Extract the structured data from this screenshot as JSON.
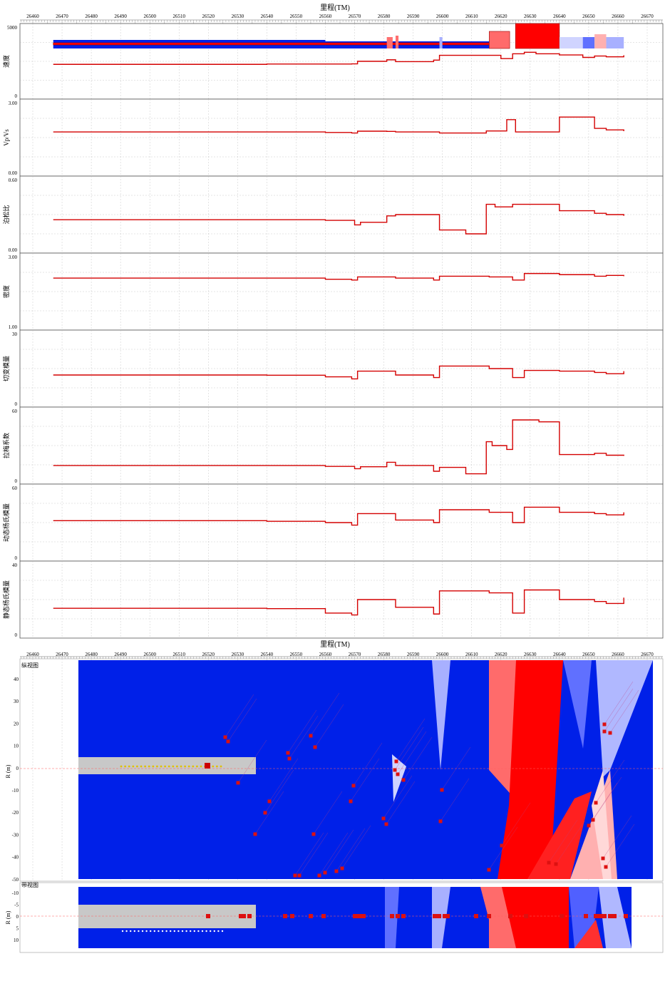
{
  "x_axis_title": "里程(TM)",
  "x_ticks": [
    26460,
    26470,
    26480,
    26490,
    26500,
    26510,
    26520,
    26530,
    26540,
    26550,
    26560,
    26570,
    26580,
    26590,
    26600,
    26610,
    26620,
    26630,
    26640,
    26650,
    26660,
    26670
  ],
  "colors": {
    "line": "#d40000",
    "blue": "#0020e8",
    "red": "#ff0000",
    "gray_bar": "#c8c8c8",
    "grid": "#bbbbbb"
  },
  "chart_data": [
    {
      "type": "area",
      "name": "velocity",
      "ylabel": "速度",
      "y_top_label": "5000",
      "y_bottom_label": "0",
      "ylim": [
        0,
        5000
      ],
      "series": [
        {
          "x": [
            26467,
            26540,
            26569,
            26571,
            26581,
            26584,
            26597,
            26599,
            26616,
            26620,
            26624,
            26628,
            26632,
            26640,
            26648,
            26652,
            26656,
            26662
          ],
          "values": [
            2300,
            2320,
            2330,
            2500,
            2600,
            2480,
            2580,
            2900,
            2900,
            2680,
            3000,
            3100,
            3000,
            2920,
            2760,
            2850,
            2800,
            2900
          ]
        }
      ]
    },
    {
      "type": "line",
      "name": "vp_vs",
      "ylabel": "Vp/Vs",
      "y_top_label": "3.00",
      "y_bottom_label": "0.00",
      "ylim": [
        0,
        3
      ],
      "series": [
        {
          "x": [
            26467,
            26540,
            26560,
            26569,
            26571,
            26581,
            26584,
            26599,
            26615,
            26622,
            26625,
            26640,
            26652,
            26656,
            26662
          ],
          "values": [
            1.72,
            1.72,
            1.7,
            1.68,
            1.75,
            1.74,
            1.72,
            1.68,
            1.76,
            2.2,
            1.72,
            2.3,
            1.86,
            1.8,
            1.75
          ]
        }
      ]
    },
    {
      "type": "line",
      "name": "poisson_ratio",
      "ylabel": "泊松比",
      "y_top_label": "0.60",
      "y_bottom_label": "0.00",
      "ylim": [
        0,
        0.6
      ],
      "series": [
        {
          "x": [
            26467,
            26540,
            26560,
            26570,
            26572,
            26581,
            26584,
            26599,
            26608,
            26615,
            26618,
            26624,
            26640,
            26652,
            26656,
            26662
          ],
          "values": [
            0.26,
            0.26,
            0.255,
            0.22,
            0.24,
            0.29,
            0.3,
            0.18,
            0.15,
            0.38,
            0.36,
            0.38,
            0.33,
            0.31,
            0.3,
            0.29
          ]
        }
      ]
    },
    {
      "type": "line",
      "name": "density",
      "ylabel": "密度",
      "y_top_label": "3.00",
      "y_bottom_label": "1.00",
      "ylim": [
        1,
        3
      ],
      "series": [
        {
          "x": [
            26467,
            26540,
            26560,
            26569,
            26571,
            26584,
            26597,
            26599,
            26616,
            26624,
            26628,
            26640,
            26652,
            26656,
            26662
          ],
          "values": [
            2.35,
            2.35,
            2.32,
            2.3,
            2.38,
            2.35,
            2.3,
            2.4,
            2.38,
            2.3,
            2.47,
            2.44,
            2.4,
            2.42,
            2.4
          ]
        }
      ]
    },
    {
      "type": "line",
      "name": "shear_modulus",
      "ylabel": "切变模量",
      "y_top_label": "30",
      "y_bottom_label": "0",
      "ylim": [
        0,
        30
      ],
      "series": [
        {
          "x": [
            26467,
            26540,
            26560,
            26569,
            26571,
            26584,
            26597,
            26599,
            26616,
            26624,
            26628,
            26640,
            26652,
            26656,
            26662
          ],
          "values": [
            12.5,
            12.4,
            11.8,
            11.0,
            14.0,
            12.5,
            11.5,
            16.0,
            15.0,
            11.5,
            14.3,
            14.0,
            13.5,
            13.0,
            14.0
          ]
        }
      ]
    },
    {
      "type": "line",
      "name": "lame_coefficient",
      "ylabel": "拉梅系数",
      "y_top_label": "60",
      "y_bottom_label": "0",
      "ylim": [
        0,
        60
      ],
      "series": [
        {
          "x": [
            26467,
            26540,
            26560,
            26570,
            26572,
            26581,
            26584,
            26597,
            26599,
            26608,
            26615,
            26617,
            26622,
            26624,
            26633,
            26640,
            26652,
            26656,
            26662
          ],
          "values": [
            14.5,
            14.5,
            13.8,
            12.0,
            13.5,
            17.0,
            14.5,
            10.0,
            13.0,
            8.0,
            33.0,
            30.0,
            27.0,
            50.0,
            48.5,
            23.0,
            24.0,
            22.5,
            22.0
          ]
        }
      ]
    },
    {
      "type": "line",
      "name": "dynamic_youngs_modulus",
      "ylabel": "动态杨氏模量",
      "y_top_label": "60",
      "y_bottom_label": "0",
      "ylim": [
        0,
        60
      ],
      "series": [
        {
          "x": [
            26467,
            26540,
            26560,
            26569,
            26571,
            26584,
            26597,
            26599,
            26616,
            26624,
            26628,
            26640,
            26652,
            26656,
            26662
          ],
          "values": [
            31.5,
            31.0,
            30.0,
            28.0,
            37.0,
            32.0,
            30.0,
            40.0,
            38.0,
            30.0,
            42.0,
            38.0,
            37.0,
            36.0,
            38.0
          ]
        }
      ]
    },
    {
      "type": "line",
      "name": "static_youngs_modulus",
      "ylabel": "静态杨氏模量",
      "y_top_label": "40",
      "y_bottom_label": "0",
      "ylim": [
        0,
        40
      ],
      "series": [
        {
          "x": [
            26467,
            26540,
            26560,
            26569,
            26571,
            26584,
            26597,
            26599,
            26616,
            26624,
            26628,
            26640,
            26652,
            26656,
            26662
          ],
          "values": [
            15.5,
            15.3,
            13.0,
            12.0,
            20.0,
            16.0,
            12.5,
            24.5,
            23.5,
            13.0,
            25.0,
            20.0,
            19.0,
            18.0,
            21.0
          ]
        }
      ]
    }
  ],
  "bottom": {
    "x_axis_title": "里程(TM)",
    "plan_label": "纵视图",
    "plan_y_unit": "R (m)",
    "plan_y_ticks": [
      "40",
      "30",
      "20",
      "10",
      "0",
      "-10",
      "-20",
      "-30",
      "-40",
      "-50"
    ],
    "section_label": "带视图",
    "section_y_unit": "R (m)",
    "section_y_ticks": [
      "-10",
      "-5",
      "0",
      "5",
      "10"
    ]
  }
}
